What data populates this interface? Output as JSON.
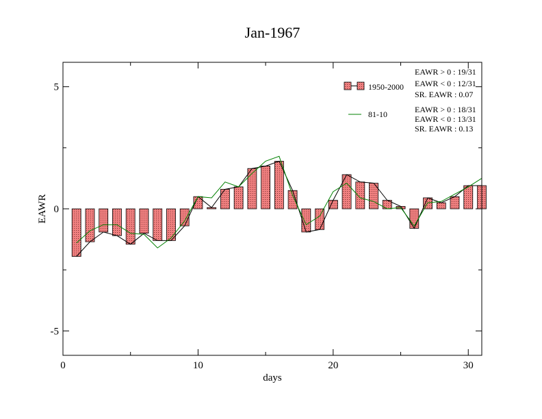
{
  "chart_data": {
    "type": "bar",
    "title": "Jan-1967",
    "xlabel": "days",
    "ylabel": "EAWR",
    "xlim": [
      0,
      31
    ],
    "ylim": [
      -6,
      6
    ],
    "x_ticks": [
      0,
      10,
      20,
      30
    ],
    "y_ticks": [
      -5,
      0,
      5
    ],
    "x_tick_labels": [
      "0",
      "10",
      "20",
      "30"
    ],
    "y_tick_labels": [
      "-5",
      "0",
      "5"
    ],
    "grid": false,
    "legend_position": "top-right",
    "x": [
      1,
      2,
      3,
      4,
      5,
      6,
      7,
      8,
      9,
      10,
      11,
      12,
      13,
      14,
      15,
      16,
      17,
      18,
      19,
      20,
      21,
      22,
      23,
      24,
      25,
      26,
      27,
      28,
      29,
      30,
      31
    ],
    "series": [
      {
        "name": "1950-2000",
        "style": "bar-with-line",
        "bar_fill": "#f08080",
        "line_color": "#000000",
        "values": [
          -1.95,
          -1.35,
          -0.95,
          -1.1,
          -1.45,
          -1.0,
          -1.3,
          -1.3,
          -0.7,
          0.5,
          0.05,
          0.8,
          0.9,
          1.65,
          1.75,
          1.95,
          0.75,
          -0.95,
          -0.85,
          0.35,
          1.4,
          1.1,
          1.05,
          0.35,
          0.1,
          -0.8,
          0.45,
          0.25,
          0.5,
          0.95,
          0.95
        ]
      },
      {
        "name": "81-10",
        "style": "line",
        "line_color": "#008000",
        "values": [
          -1.4,
          -0.9,
          -0.65,
          -0.65,
          -1.0,
          -1.05,
          -1.6,
          -1.2,
          -0.5,
          0.5,
          0.45,
          1.1,
          0.9,
          1.45,
          1.95,
          2.15,
          0.55,
          -0.65,
          -0.3,
          0.7,
          1.05,
          0.45,
          0.3,
          0.0,
          0.05,
          -0.7,
          0.25,
          0.3,
          0.6,
          0.9,
          1.25
        ]
      }
    ],
    "stats_1950_2000": [
      "EAWR > 0 : 19/31",
      "EAWR < 0 : 12/31",
      "SR. EAWR :  0.07"
    ],
    "stats_81_10": [
      "EAWR > 0 : 18/31",
      "EAWR < 0 : 13/31",
      "SR. EAWR :  0.13"
    ]
  }
}
